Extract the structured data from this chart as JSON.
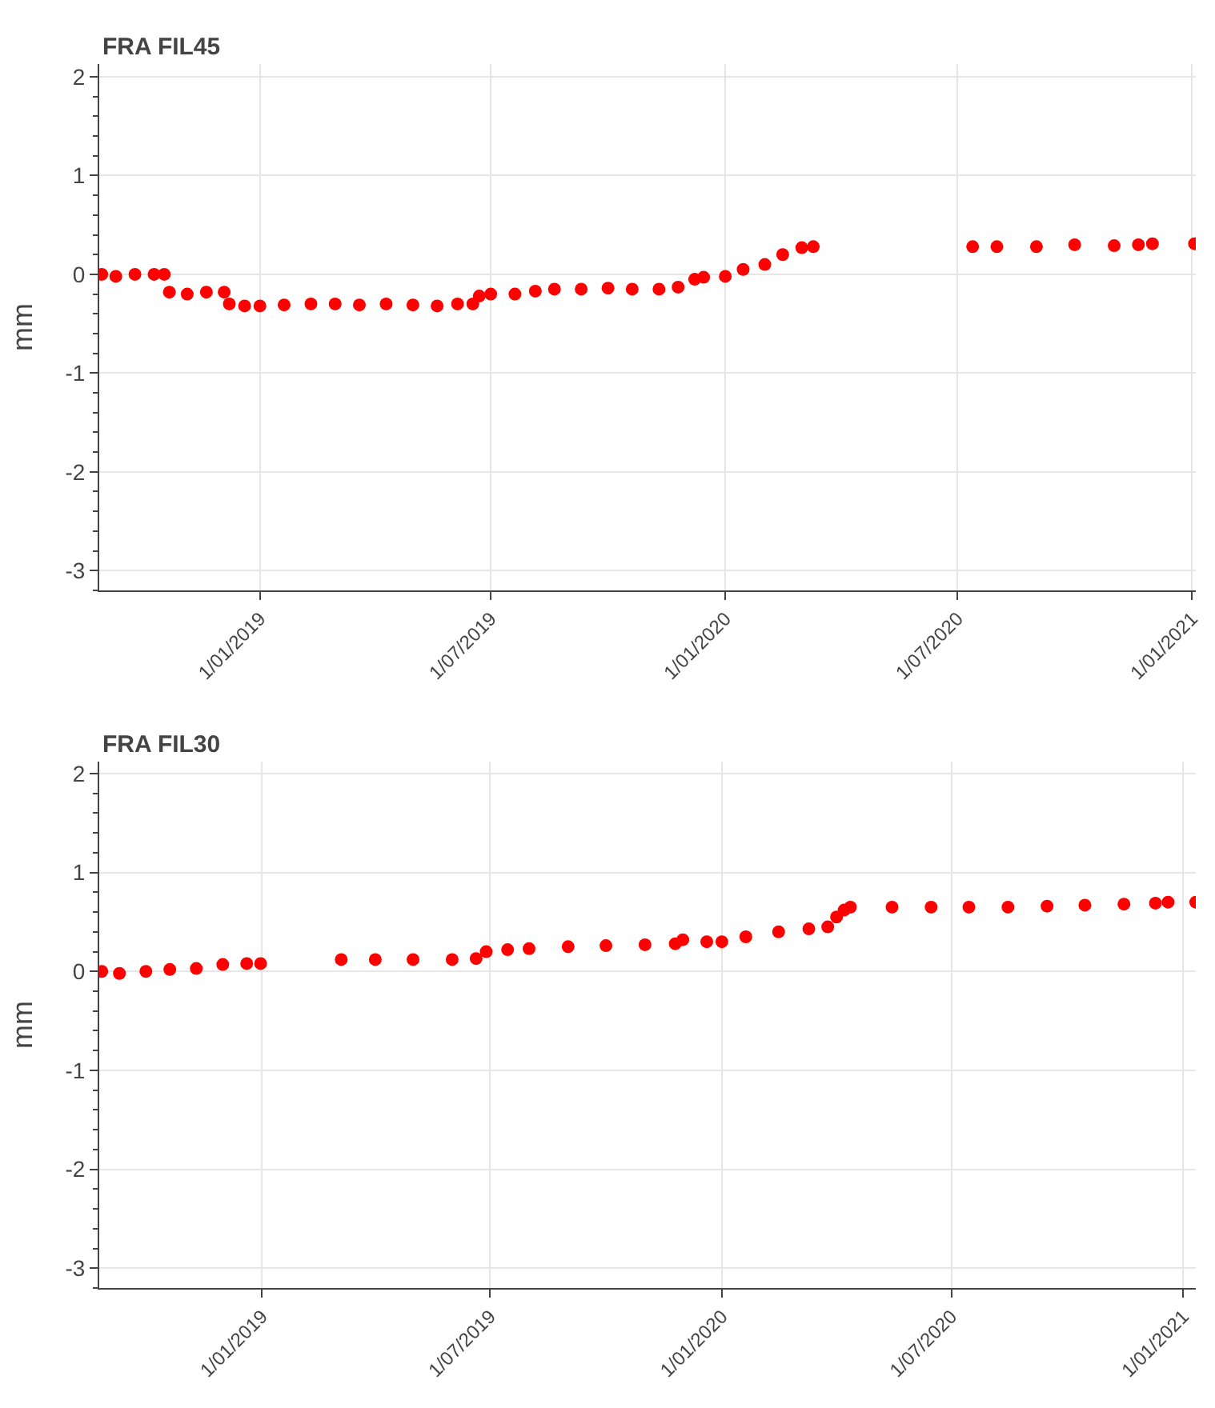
{
  "chart_data": [
    {
      "type": "scatter",
      "title": "FRA FIL45",
      "ylabel": "mm",
      "marker": "circle",
      "grid": true,
      "xlim": [
        "2018-08-28",
        "2021-01-04"
      ],
      "xticks": [
        {
          "value": "2019-01-01",
          "label": "1/01/2019"
        },
        {
          "value": "2019-07-01",
          "label": "1/07/2019"
        },
        {
          "value": "2020-01-01",
          "label": "1/01/2020"
        },
        {
          "value": "2020-07-01",
          "label": "1/07/2020"
        },
        {
          "value": "2021-01-01",
          "label": "1/01/2021"
        }
      ],
      "ylim": [
        -3.2,
        2.13
      ],
      "yticks": [
        -3,
        -2,
        -1,
        0,
        1,
        2
      ],
      "series": [
        {
          "color": "#ff0000",
          "x": [
            "2018-08-30",
            "2018-09-10",
            "2018-09-25",
            "2018-10-10",
            "2018-10-18",
            "2018-10-22",
            "2018-11-05",
            "2018-11-20",
            "2018-12-04",
            "2018-12-08",
            "2018-12-20",
            "2019-01-01",
            "2019-01-20",
            "2019-02-10",
            "2019-03-01",
            "2019-03-20",
            "2019-04-10",
            "2019-05-01",
            "2019-05-20",
            "2019-06-05",
            "2019-06-17",
            "2019-06-22",
            "2019-07-01",
            "2019-07-20",
            "2019-08-05",
            "2019-08-20",
            "2019-09-10",
            "2019-10-01",
            "2019-10-20",
            "2019-11-10",
            "2019-11-25",
            "2019-12-08",
            "2019-12-15",
            "2020-01-01",
            "2020-01-15",
            "2020-02-01",
            "2020-02-15",
            "2020-03-01",
            "2020-03-10",
            "2020-07-13",
            "2020-08-01",
            "2020-09-01",
            "2020-10-01",
            "2020-11-01",
            "2020-11-20",
            "2020-12-01",
            "2021-01-03"
          ],
          "values": [
            0.0,
            -0.02,
            0.0,
            0.0,
            0.0,
            -0.18,
            -0.2,
            -0.18,
            -0.18,
            -0.3,
            -0.32,
            -0.32,
            -0.31,
            -0.3,
            -0.3,
            -0.31,
            -0.3,
            -0.31,
            -0.32,
            -0.3,
            -0.3,
            -0.22,
            -0.2,
            -0.2,
            -0.17,
            -0.15,
            -0.15,
            -0.14,
            -0.15,
            -0.15,
            -0.13,
            -0.05,
            -0.03,
            -0.02,
            0.05,
            0.1,
            0.2,
            0.27,
            0.28,
            0.28,
            0.28,
            0.28,
            0.3,
            0.29,
            0.3,
            0.31,
            0.31
          ]
        }
      ]
    },
    {
      "type": "scatter",
      "title": "FRA FIL30",
      "ylabel": "mm",
      "marker": "circle",
      "grid": true,
      "xlim": [
        "2018-08-25",
        "2021-01-11"
      ],
      "xticks": [
        {
          "value": "2019-01-01",
          "label": "1/01/2019"
        },
        {
          "value": "2019-07-01",
          "label": "1/07/2019"
        },
        {
          "value": "2020-01-01",
          "label": "1/01/2020"
        },
        {
          "value": "2020-07-01",
          "label": "1/07/2020"
        },
        {
          "value": "2021-01-01",
          "label": "1/01/2021"
        }
      ],
      "ylim": [
        -3.2,
        2.12
      ],
      "yticks": [
        -3,
        -2,
        -1,
        0,
        1,
        2
      ],
      "series": [
        {
          "color": "#ff0000",
          "x": [
            "2018-08-27",
            "2018-09-10",
            "2018-10-01",
            "2018-10-20",
            "2018-11-10",
            "2018-12-01",
            "2018-12-20",
            "2018-12-31",
            "2019-03-05",
            "2019-04-01",
            "2019-05-01",
            "2019-06-01",
            "2019-06-20",
            "2019-06-28",
            "2019-07-15",
            "2019-08-01",
            "2019-09-01",
            "2019-10-01",
            "2019-11-01",
            "2019-11-25",
            "2019-12-01",
            "2019-12-20",
            "2020-01-01",
            "2020-01-20",
            "2020-02-15",
            "2020-03-10",
            "2020-03-25",
            "2020-04-01",
            "2020-04-07",
            "2020-04-12",
            "2020-05-15",
            "2020-06-15",
            "2020-07-15",
            "2020-08-15",
            "2020-09-15",
            "2020-10-15",
            "2020-11-15",
            "2020-12-10",
            "2020-12-20",
            "2021-01-11"
          ],
          "values": [
            0.0,
            -0.02,
            0.0,
            0.02,
            0.03,
            0.07,
            0.08,
            0.08,
            0.12,
            0.12,
            0.12,
            0.12,
            0.13,
            0.2,
            0.22,
            0.23,
            0.25,
            0.26,
            0.27,
            0.28,
            0.32,
            0.3,
            0.3,
            0.35,
            0.4,
            0.43,
            0.45,
            0.55,
            0.62,
            0.65,
            0.65,
            0.65,
            0.65,
            0.65,
            0.66,
            0.67,
            0.68,
            0.69,
            0.7,
            0.7
          ]
        }
      ]
    }
  ]
}
